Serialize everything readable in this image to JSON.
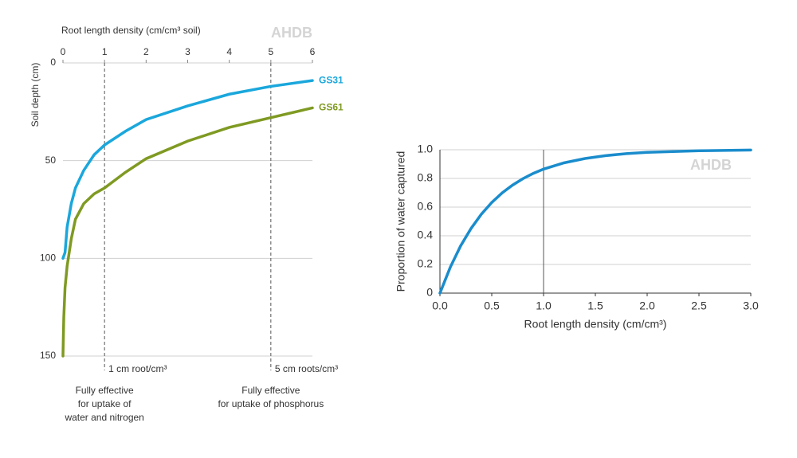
{
  "chart_data": [
    {
      "type": "line",
      "x_label": "Root length density (cm/cm³ soil)",
      "y_label": "Soil depth (cm)",
      "watermark": "AHDB",
      "xlim": [
        0,
        6
      ],
      "xticks": [
        0,
        1,
        2,
        3,
        4,
        5,
        6
      ],
      "ylim": [
        0,
        150
      ],
      "yticks": [
        0,
        50,
        100,
        150
      ],
      "y_inverted": true,
      "x_axis_position": "top",
      "grid": true,
      "series": [
        {
          "name": "GS31",
          "color": "#1aa7dc",
          "x": [
            0,
            0.05,
            0.1,
            0.2,
            0.3,
            0.5,
            0.75,
            1,
            1.5,
            2,
            3,
            4,
            5,
            6
          ],
          "values": [
            100,
            97,
            84,
            72,
            64,
            55,
            47,
            42,
            35,
            29,
            22,
            16,
            12,
            9
          ]
        },
        {
          "name": "GS61",
          "color": "#7f9a22",
          "x": [
            0,
            0.02,
            0.05,
            0.1,
            0.2,
            0.3,
            0.5,
            0.75,
            1,
            1.5,
            2,
            3,
            4,
            5,
            6
          ],
          "values": [
            150,
            130,
            115,
            104,
            90,
            80,
            72,
            67,
            64,
            56,
            49,
            40,
            33,
            28,
            23
          ]
        }
      ],
      "reference_style": "dashed",
      "reference_lines": [
        {
          "x": 1,
          "label": "1 cm root/cm³",
          "note": [
            "Fully effective",
            "for uptake of",
            "water and nitrogen"
          ]
        },
        {
          "x": 5,
          "label": "5 cm roots/cm³",
          "note": [
            "Fully effective",
            "for uptake of phosphorus"
          ]
        }
      ]
    },
    {
      "type": "line",
      "x_label": "Root length density (cm/cm³)",
      "y_label": "Proportion of water captured",
      "watermark": "AHDB",
      "xlim": [
        0,
        3
      ],
      "xticks": [
        {
          "value": 0,
          "label": "0.0"
        },
        0.5,
        {
          "value": 1,
          "label": "1.0"
        },
        1.5,
        {
          "value": 2,
          "label": "2.0"
        },
        2.5,
        {
          "value": 3,
          "label": "3.0"
        }
      ],
      "ylim": [
        0,
        1
      ],
      "yticks": [
        0,
        0.2,
        0.4,
        0.6,
        0.8,
        {
          "value": 1,
          "label": "1.0"
        }
      ],
      "y_inverted": false,
      "x_axis_position": "bottom",
      "grid": true,
      "series": [
        {
          "color": "#1a8ccc",
          "x": [
            0,
            0.1,
            0.2,
            0.3,
            0.4,
            0.5,
            0.6,
            0.7,
            0.8,
            0.9,
            1.0,
            1.2,
            1.4,
            1.6,
            1.8,
            2.0,
            2.5,
            3.0
          ],
          "values": [
            0,
            0.181,
            0.33,
            0.451,
            0.551,
            0.632,
            0.699,
            0.753,
            0.798,
            0.835,
            0.865,
            0.909,
            0.939,
            0.959,
            0.973,
            0.982,
            0.993,
            0.998
          ]
        }
      ],
      "reference_style": "solid",
      "reference_lines": [
        {
          "x": 1
        }
      ]
    }
  ]
}
